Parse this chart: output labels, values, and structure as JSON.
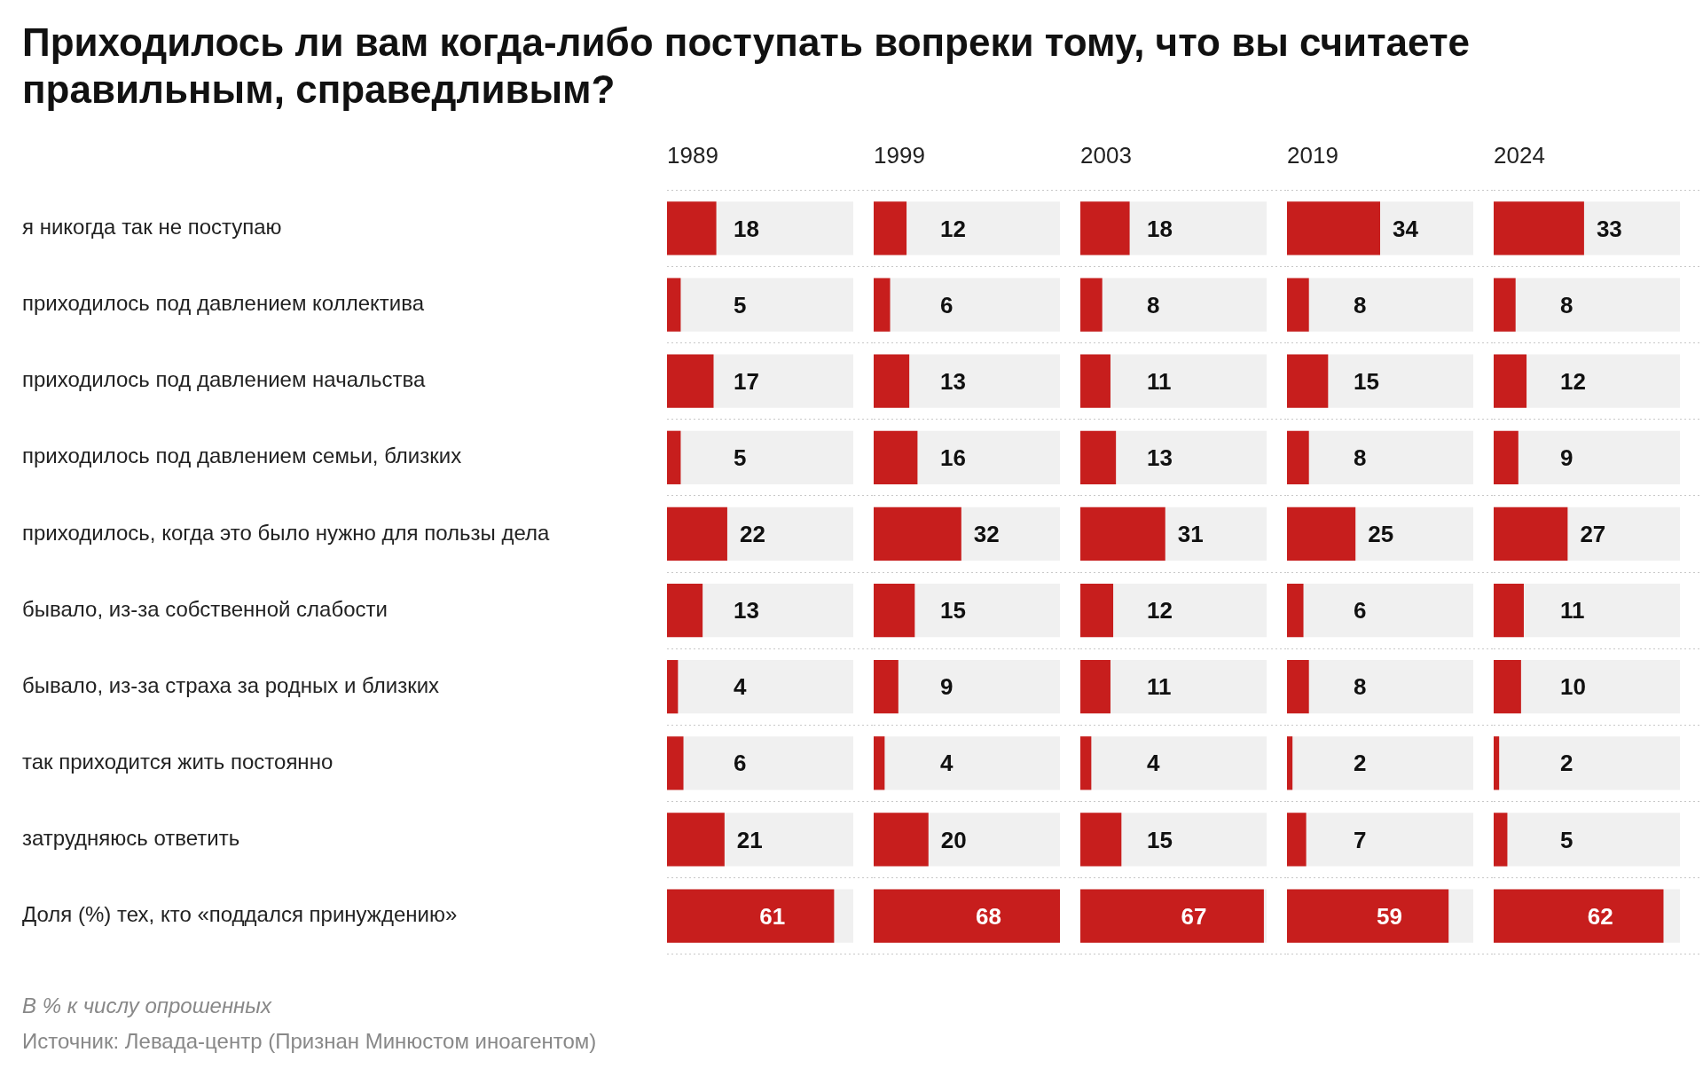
{
  "chart_data": [
    {
      "type": "bar",
      "orientation": "horizontal",
      "title": "Приходилось ли вам когда-либо поступать вопреки тому, что вы считаете правильным, справедливым?",
      "subtitle": "1989",
      "categories": [
        "я никогда так не поступаю",
        "приходилось под давлением коллектива",
        "приходилось под давлением начальства",
        "приходилось под давлением семьи, близких",
        "приходилось, когда это было нужно для пользы дела",
        "бывало, из-за собственной слабости",
        "бывало, из-за страха за родных и близких",
        "так приходится жить постоянно",
        "затрудняюсь ответить",
        "Доля (%) тех, кто «поддался принуждению»"
      ],
      "values": [
        18,
        5,
        17,
        5,
        22,
        13,
        4,
        6,
        21,
        61
      ],
      "color": "#c71e1d",
      "data_labels": true,
      "grid": "y",
      "tick_labels": "y",
      "annotations": [
        "В % к числу опрошенных",
        "Источник: Левада-центр (Признан Минюстом иноагентом)"
      ]
    },
    {
      "type": "bar",
      "orientation": "horizontal",
      "subtitle": "1999",
      "categories": [
        null,
        null,
        null,
        null,
        null,
        null,
        null,
        null,
        null,
        null
      ],
      "values": [
        12,
        6,
        13,
        16,
        32,
        15,
        9,
        4,
        20,
        68
      ],
      "color": "#c71e1d",
      "data_labels": true,
      "grid": "y",
      "tick_labels": false
    },
    {
      "type": "bar",
      "orientation": "horizontal",
      "subtitle": "2003",
      "categories": [
        null,
        null,
        null,
        null,
        null,
        null,
        null,
        null,
        null,
        null
      ],
      "values": [
        18,
        8,
        11,
        13,
        31,
        12,
        11,
        4,
        15,
        67
      ],
      "color": "#c71e1d",
      "data_labels": true,
      "grid": "y",
      "tick_labels": false
    },
    {
      "type": "bar",
      "orientation": "horizontal",
      "subtitle": "2019",
      "categories": [
        null,
        null,
        null,
        null,
        null,
        null,
        null,
        null,
        null,
        null
      ],
      "values": [
        34,
        8,
        15,
        8,
        25,
        6,
        8,
        2,
        7,
        59
      ],
      "color": "#c71e1d",
      "data_labels": true,
      "grid": "y",
      "tick_labels": false
    },
    {
      "type": "bar",
      "orientation": "horizontal",
      "subtitle": "2024",
      "categories": [
        null,
        null,
        null,
        null,
        null,
        null,
        null,
        null,
        null,
        null
      ],
      "values": [
        33,
        8,
        12,
        9,
        27,
        11,
        10,
        2,
        5,
        62
      ],
      "color": "#c71e1d",
      "data_labels": true,
      "grid": "y",
      "tick_labels": false
    }
  ]
}
